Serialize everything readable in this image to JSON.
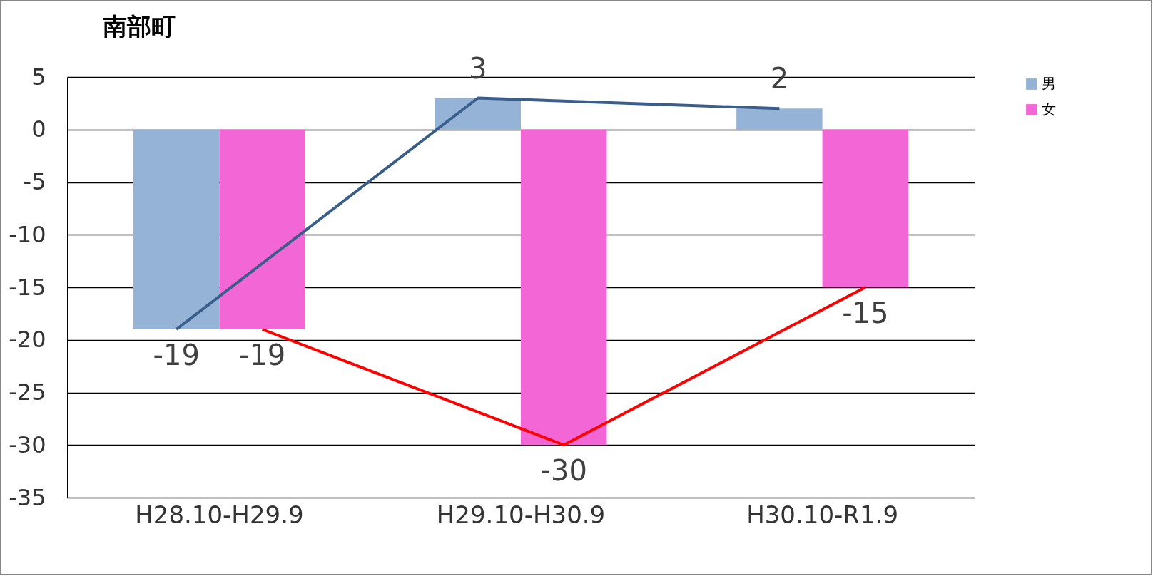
{
  "chart_data": {
    "type": "bar",
    "title": "南部町",
    "categories": [
      "H28.10-H29.9",
      "H29.10-H30.9",
      "H30.10-R1.9"
    ],
    "series": [
      {
        "name": "男",
        "color": "#95b3d7",
        "values": [
          -19,
          3,
          2
        ],
        "value_labels": [
          "-19",
          "3",
          "2"
        ]
      },
      {
        "name": "女",
        "color": "#f366d6",
        "values": [
          -19,
          -30,
          -15
        ],
        "value_labels": [
          "-19",
          "-30",
          "-15"
        ]
      },
      {
        "type": "line",
        "color": "#3a5e8c",
        "values": [
          -19,
          3,
          2
        ]
      },
      {
        "type": "line",
        "color": "#ff0000",
        "values": [
          -19,
          -30,
          -15
        ]
      }
    ],
    "ylim": [
      -35,
      5
    ],
    "yticks": [
      5,
      0,
      -5,
      -10,
      -15,
      -20,
      -25,
      -30,
      -35
    ],
    "grid": "y",
    "legend": "right"
  }
}
